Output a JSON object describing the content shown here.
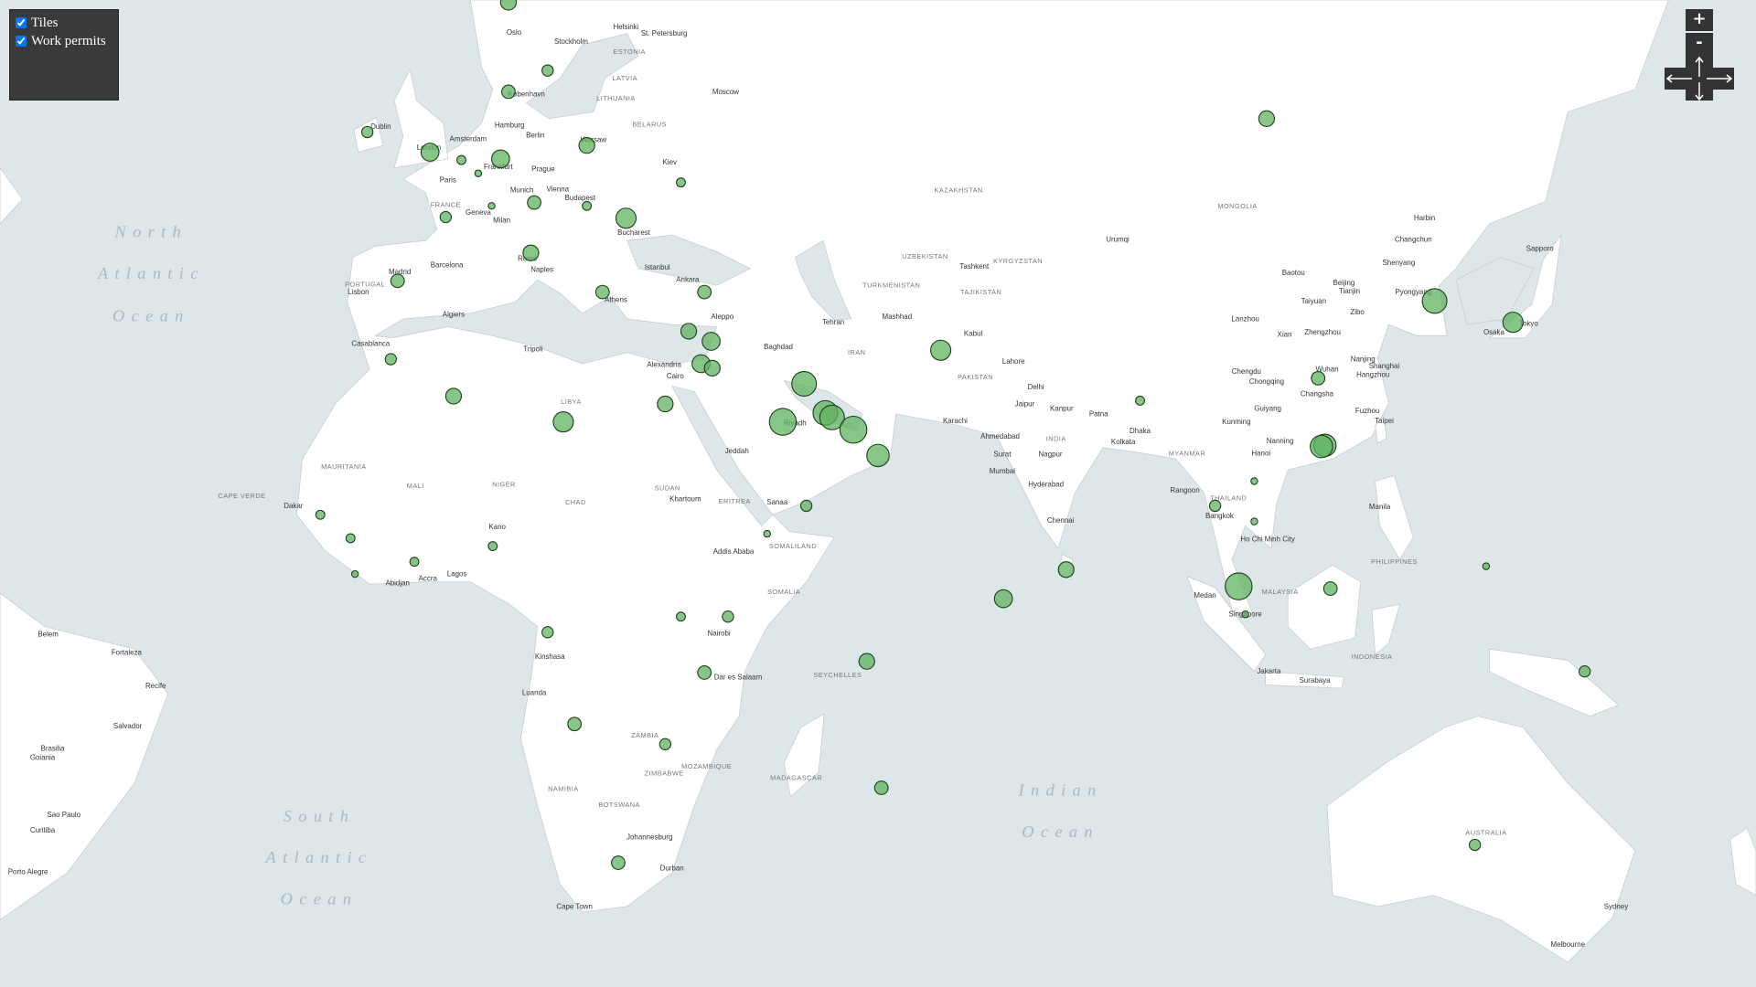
{
  "layers": {
    "tiles": "Tiles",
    "work_permits": "Work permits"
  },
  "zoom": {
    "in": "+",
    "out": "-"
  },
  "map": {
    "labels": [
      "North",
      "Atlantic",
      "Ocean",
      "South",
      "Atlantic",
      "Ocean",
      "Indian",
      "Ocean",
      "KAZAKHSTAN",
      "MONGOLIA",
      "INDIA",
      "IRAN",
      "LIBYA",
      "NIGER",
      "CHAD",
      "SUDAN",
      "MALI",
      "MAURITANIA",
      "SOMALIA",
      "ZAMBIA",
      "NAMIBIA",
      "BOTSWANA",
      "ZIMBABWE",
      "MOZAMBIQUE",
      "MADAGASCAR",
      "AUSTRALIA",
      "INDONESIA",
      "MALAYSIA",
      "THAILAND",
      "MYANMAR",
      "PAKISTAN",
      "TURKMENISTAN",
      "UZBEKISTAN",
      "KYRGYZSTAN",
      "TAJIKISTAN",
      "FRANCE",
      "PORTUGAL",
      "BELARUS",
      "LATVIA",
      "LITHUANIA",
      "ESTONIA",
      "PHILIPPINES",
      "SEYCHELLES",
      "CAPE VERDE",
      "ERITREA",
      "SOMALILAND",
      "Oslo",
      "Stockholm",
      "Helsinki",
      "St. Petersburg",
      "Moscow",
      "København",
      "Hamburg",
      "Berlin",
      "Warsaw",
      "Amsterdam",
      "London",
      "Dublin",
      "Paris",
      "Frankfurt",
      "Prague",
      "Munich",
      "Vienna",
      "Budapest",
      "Kiev",
      "Geneva",
      "Milan",
      "Bucharest",
      "Rome",
      "Naples",
      "Barcelona",
      "Madrid",
      "Lisbon",
      "Istanbul",
      "Ankara",
      "Athens",
      "Aleppo",
      "Algiers",
      "Tripoli",
      "Casablanca",
      "Alexandria",
      "Cairo",
      "Tehran",
      "Mashhad",
      "Baghdad",
      "Kabul",
      "Tashkent",
      "Lahore",
      "Delhi",
      "Jaipur",
      "Kanpur",
      "Patna",
      "Karachi",
      "Ahmedabad",
      "Surat",
      "Nagpur",
      "Kolkata",
      "Dhaka",
      "Mumbai",
      "Hyderabad",
      "Chennai",
      "Riyadh",
      "Jeddah",
      "Sanaa",
      "Khartoum",
      "Addis Ababa",
      "Nairobi",
      "Kinshasa",
      "Luanda",
      "Dar es Salaam",
      "Johannesburg",
      "Durban",
      "Cape Town",
      "Dakar",
      "Abidjan",
      "Accra",
      "Lagos",
      "Kano",
      "Urumqi",
      "Harbin",
      "Changchun",
      "Shenyang",
      "Beijing",
      "Tianjin",
      "Baotou",
      "Taiyuan",
      "Pyongyang",
      "Sapporo",
      "Tokyo",
      "Osaka",
      "Lanzhou",
      "Xian",
      "Zhengzhou",
      "Zibo",
      "Nanjing",
      "Shanghai",
      "Hangzhou",
      "Wuhan",
      "Chengdu",
      "Chongqing",
      "Changsha",
      "Guiyang",
      "Kunming",
      "Fuzhou",
      "Taipei",
      "Nanning",
      "Hanoi",
      "Rangoon",
      "Bangkok",
      "Ho Chi Minh City",
      "Manila",
      "Medan",
      "Singapore",
      "Jakarta",
      "Surabaya",
      "Sydney",
      "Melbourne",
      "Belem",
      "Fortaleza",
      "Recife",
      "Salvador",
      "Brasilia",
      "Goiania",
      "Sao Paulo",
      "Curitiba",
      "Porto Alegre"
    ],
    "work_permits": [
      49,
      25,
      36,
      25,
      64,
      16,
      64,
      49,
      9,
      16,
      9,
      36,
      16,
      25,
      81,
      49,
      36,
      36,
      36,
      49,
      64,
      64,
      49,
      25,
      49,
      49,
      81,
      121,
      144,
      121,
      121,
      144,
      100,
      81,
      49,
      16,
      121,
      81,
      36,
      100,
      100,
      9,
      25,
      9,
      144,
      9,
      36,
      9,
      25,
      25,
      49,
      64,
      25,
      9,
      16,
      16,
      16,
      9,
      16,
      16,
      25,
      25,
      36,
      36,
      25,
      36,
      49,
      36
    ]
  }
}
